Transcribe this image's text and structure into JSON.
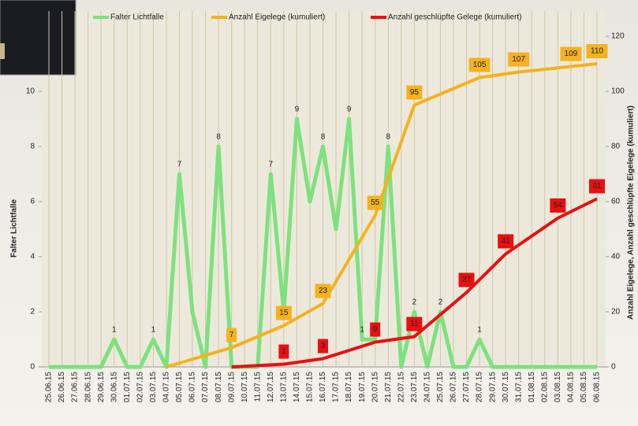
{
  "chart_data": {
    "type": "line",
    "categories": [
      "25.06.15",
      "26.06.15",
      "27.06.15",
      "28.06.15",
      "29.06.15",
      "30.06.15",
      "01.07.15",
      "02.07.15",
      "03.07.15",
      "04.07.15",
      "05.07.15",
      "06.07.15",
      "07.07.15",
      "08.07.15",
      "09.07.15",
      "10.07.15",
      "11.07.15",
      "12.07.15",
      "13.07.15",
      "14.07.15",
      "15.07.15",
      "16.07.15",
      "17.07.15",
      "18.07.15",
      "19.07.15",
      "20.07.15",
      "21.07.15",
      "22.07.15",
      "23.07.15",
      "24.07.15",
      "25.07.15",
      "26.07.15",
      "27.07.15",
      "28.07.15",
      "29.07.15",
      "30.07.15",
      "31.07.15",
      "01.08.15",
      "02.08.15",
      "03.08.15",
      "04.08.15",
      "05.08.15",
      "06.08.15"
    ],
    "ylabel": "Falter Lichtfalle",
    "y2label": "Anzahl Eigelege, Anzahl geschlüpfte Eigelege (kumuliert)",
    "ylim": [
      0,
      12
    ],
    "yticks": [
      0,
      2,
      4,
      6,
      8,
      10
    ],
    "y2lim": [
      0,
      120
    ],
    "y2ticks": [
      0,
      20,
      40,
      60,
      80,
      100,
      120
    ],
    "grid": true,
    "series": [
      {
        "name": "Falter Lichtfalle",
        "color": "#7de27d",
        "values": [
          0,
          0,
          0,
          0,
          0,
          1,
          0,
          0,
          1,
          0,
          7,
          2,
          0,
          8,
          0,
          0,
          0,
          7,
          2,
          9,
          6,
          8,
          5,
          9,
          1,
          1,
          8,
          0,
          2,
          0,
          2,
          0,
          0,
          1,
          0,
          0,
          0,
          0,
          0,
          0,
          0,
          0,
          0
        ],
        "value_labels": [
          null,
          null,
          null,
          null,
          null,
          "1",
          null,
          null,
          "1",
          null,
          "7",
          null,
          null,
          "8",
          null,
          null,
          null,
          "7",
          null,
          "9",
          null,
          "8",
          null,
          "9",
          "1",
          null,
          "8",
          null,
          "2",
          null,
          "2",
          null,
          null,
          "1",
          null,
          null,
          null,
          null,
          null,
          null,
          null,
          null,
          null
        ]
      },
      {
        "name": "Anzahl Eigelege (kumuliert)",
        "color": "#f5b21e",
        "axis": "y2",
        "x": [
          "04.07.15",
          "09.07.15",
          "13.07.15",
          "16.07.15",
          "20.07.15",
          "23.07.15",
          "28.07.15",
          "31.07.15",
          "04.08.15",
          "06.08.15"
        ],
        "values": [
          0,
          7,
          15,
          23,
          55,
          95,
          105,
          107,
          109,
          110
        ],
        "value_labels": [
          null,
          "7",
          "15",
          "23",
          "55",
          "95",
          "105",
          "107",
          "109",
          "110"
        ]
      },
      {
        "name": "Anzahl geschlüpfte Gelege (kumuliert)",
        "color": "#e81010",
        "axis": "y2",
        "x": [
          "09.07.15",
          "13.07.15",
          "16.07.15",
          "20.07.15",
          "23.07.15",
          "27.07.15",
          "30.07.15",
          "03.08.15",
          "06.08.15"
        ],
        "values": [
          0,
          1,
          3,
          9,
          11,
          27,
          41,
          54,
          61
        ],
        "value_labels": [
          null,
          "1",
          "3",
          "9",
          "11",
          "27",
          "41",
          "54",
          "61"
        ]
      }
    ]
  }
}
